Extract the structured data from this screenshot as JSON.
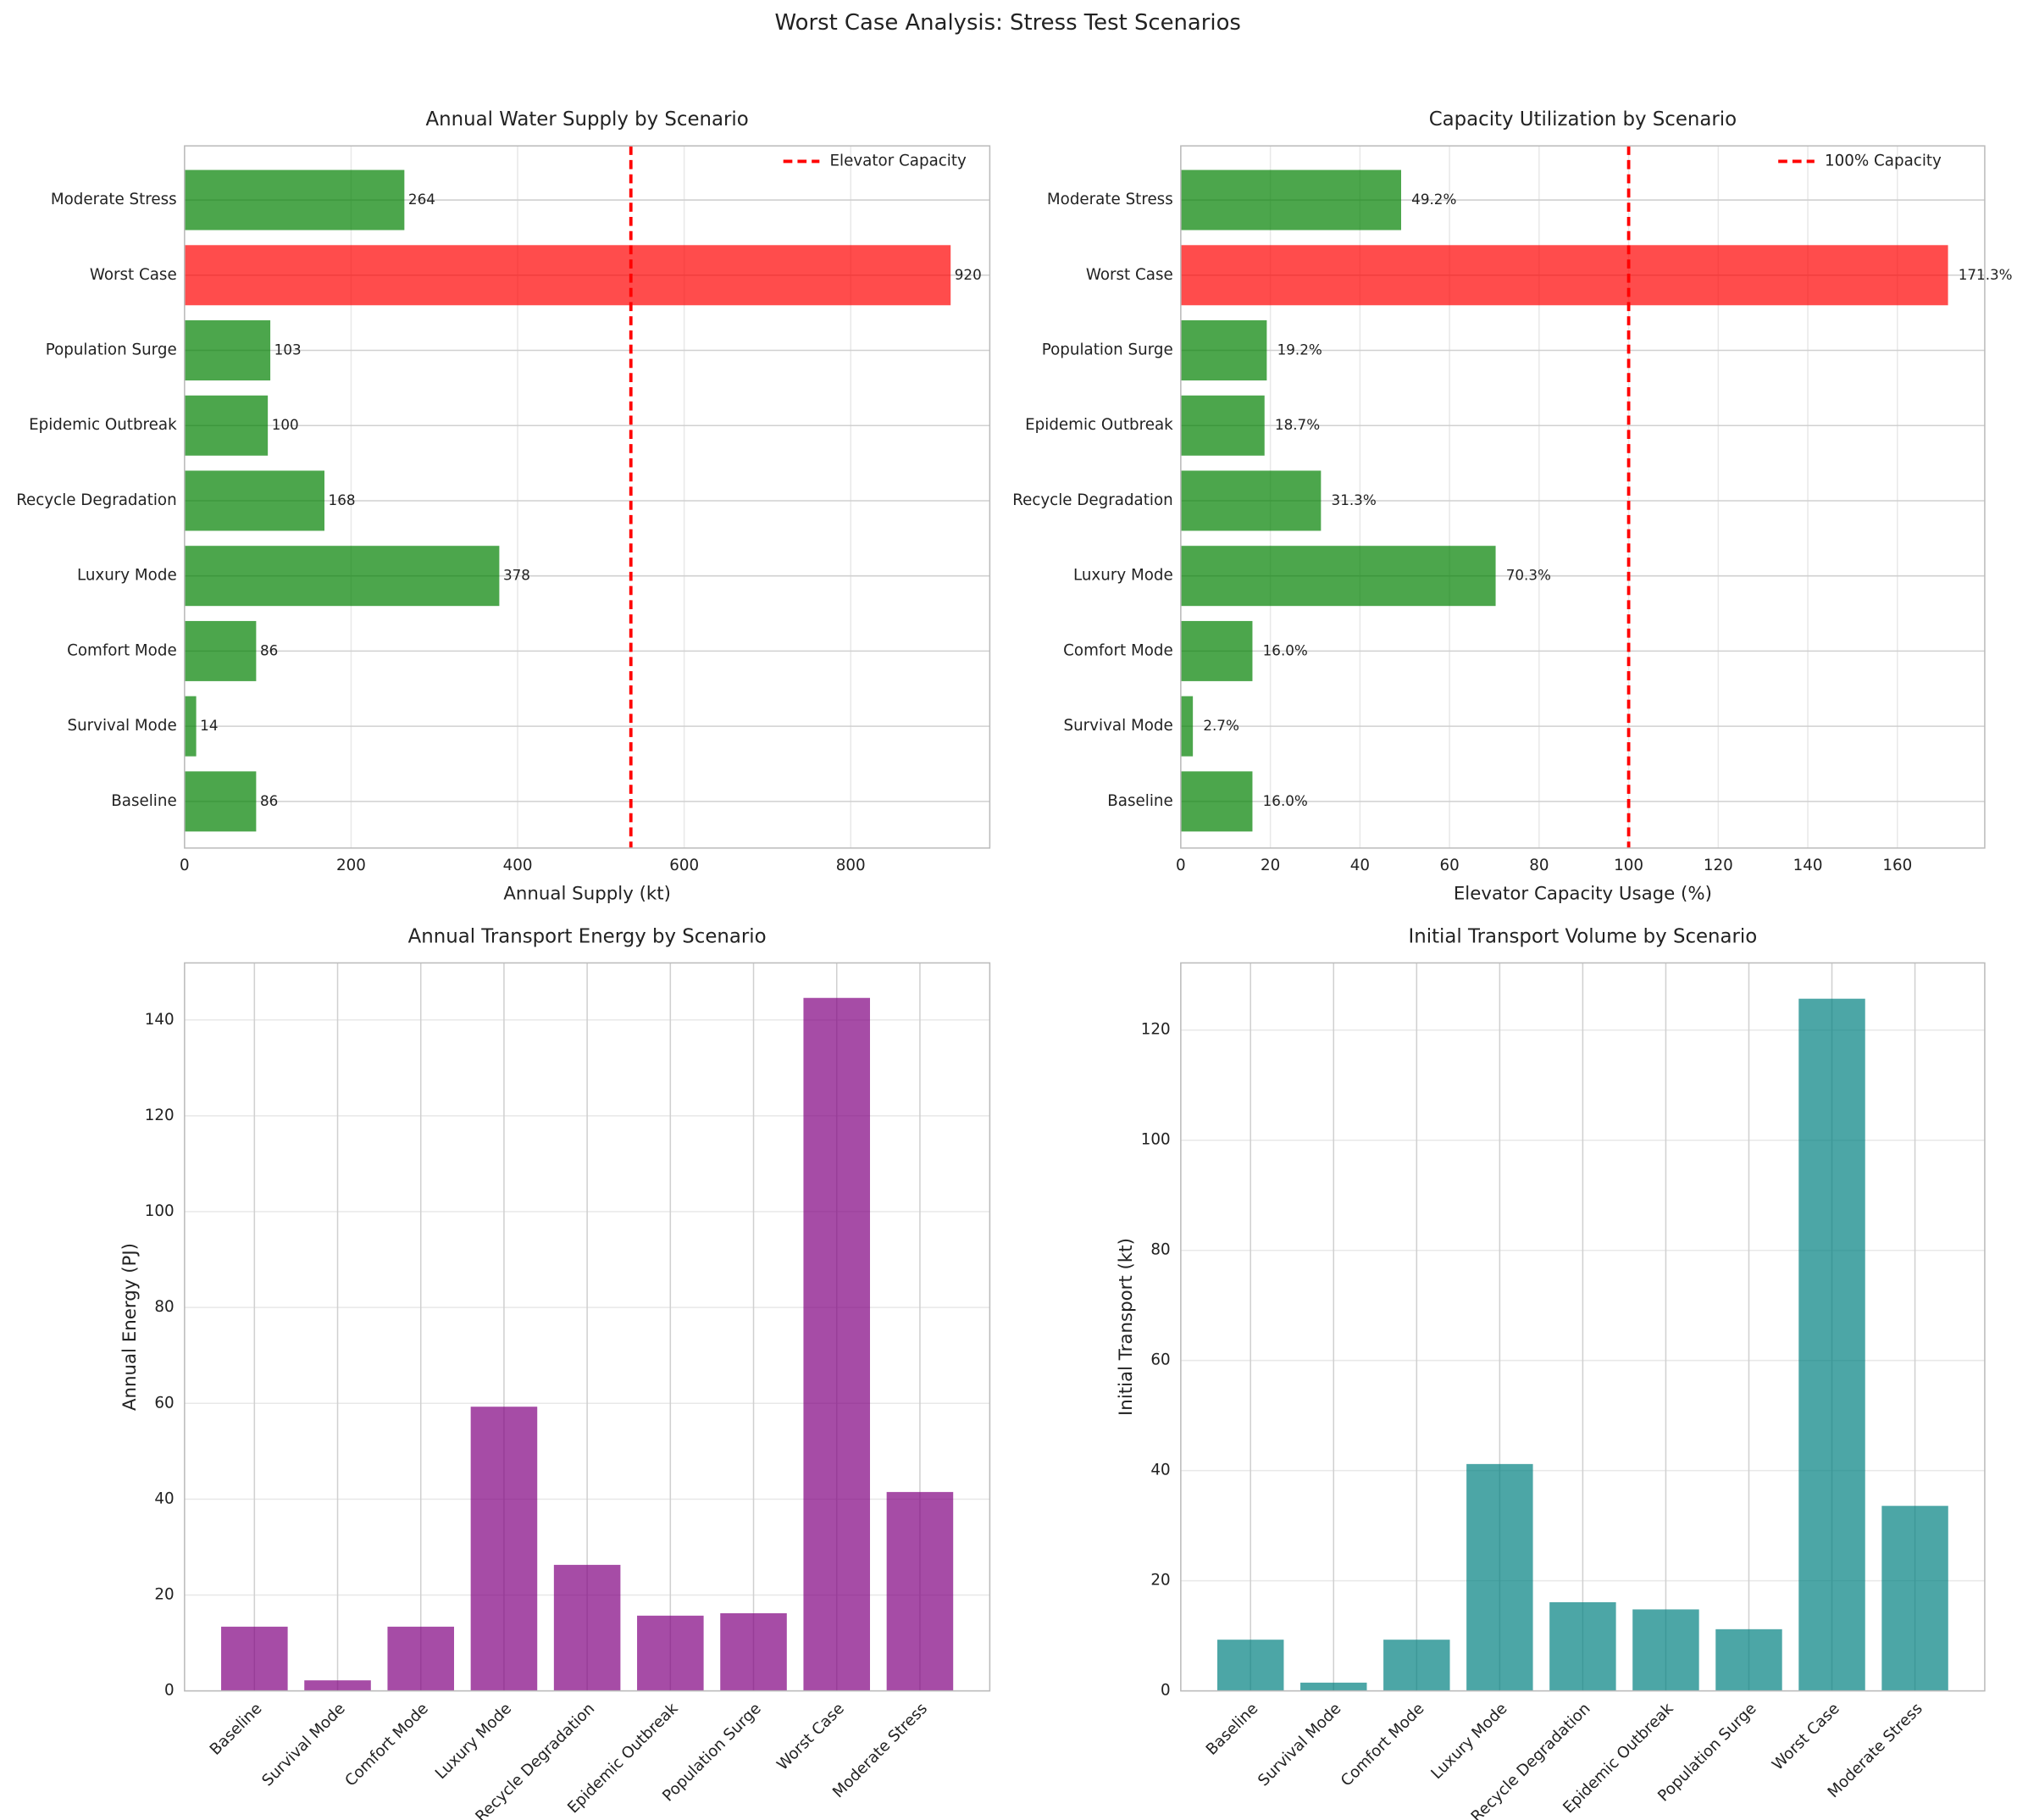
{
  "title": "Worst Case Analysis: Stress Test Scenarios",
  "chart_data": [
    {
      "type": "barh",
      "title": "Annual Water Supply by Scenario",
      "xlabel": "Annual Supply (kt)",
      "categories": [
        "Baseline",
        "Survival Mode",
        "Comfort Mode",
        "Luxury Mode",
        "Recycle Degradation",
        "Epidemic Outbreak",
        "Population Surge",
        "Worst Case",
        "Moderate Stress"
      ],
      "values": [
        86,
        14,
        86,
        378,
        168,
        100,
        103,
        920,
        264
      ],
      "colors": [
        "green",
        "green",
        "green",
        "green",
        "green",
        "green",
        "green",
        "red",
        "green"
      ],
      "xlim": [
        0,
        967
      ],
      "xticks": [
        0,
        200,
        400,
        600,
        800
      ],
      "reference_line": {
        "value": 536,
        "label": "Elevator Capacity",
        "color": "red"
      },
      "legend": "upper right",
      "grid": true
    },
    {
      "type": "barh",
      "title": "Capacity Utilization by Scenario",
      "xlabel": "Elevator Capacity Usage (%)",
      "categories": [
        "Baseline",
        "Survival Mode",
        "Comfort Mode",
        "Luxury Mode",
        "Recycle Degradation",
        "Epidemic Outbreak",
        "Population Surge",
        "Worst Case",
        "Moderate Stress"
      ],
      "values": [
        16.0,
        2.7,
        16.0,
        70.3,
        31.3,
        18.7,
        19.2,
        171.3,
        49.2
      ],
      "value_labels": [
        "16.0%",
        "2.7%",
        "16.0%",
        "70.3%",
        "31.3%",
        "18.7%",
        "19.2%",
        "171.3%",
        "49.2%"
      ],
      "colors": [
        "green",
        "green",
        "green",
        "green",
        "green",
        "green",
        "green",
        "red",
        "green"
      ],
      "xlim": [
        0,
        179.5
      ],
      "xticks": [
        0,
        20,
        40,
        60,
        80,
        100,
        120,
        140,
        160
      ],
      "reference_line": {
        "value": 100,
        "label": "100% Capacity",
        "color": "red"
      },
      "legend": "upper right",
      "grid": true
    },
    {
      "type": "bar",
      "title": "Annual Transport Energy by Scenario",
      "ylabel": "Annual Energy (PJ)",
      "categories": [
        "Baseline",
        "Survival Mode",
        "Comfort Mode",
        "Luxury Mode",
        "Recycle Degradation",
        "Epidemic Outbreak",
        "Population Surge",
        "Worst Case",
        "Moderate Stress"
      ],
      "values": [
        13.4,
        2.2,
        13.4,
        59.3,
        26.3,
        15.7,
        16.2,
        144.6,
        41.5
      ],
      "color": "purple",
      "ylim": [
        0,
        151.9
      ],
      "yticks": [
        0,
        20,
        40,
        60,
        80,
        100,
        120,
        140
      ],
      "grid": true
    },
    {
      "type": "bar",
      "title": "Initial Transport Volume by Scenario",
      "ylabel": "Initial Transport (kt)",
      "categories": [
        "Baseline",
        "Survival Mode",
        "Comfort Mode",
        "Luxury Mode",
        "Recycle Degradation",
        "Epidemic Outbreak",
        "Population Surge",
        "Worst Case",
        "Moderate Stress"
      ],
      "values": [
        9.3,
        1.5,
        9.3,
        41.2,
        16.1,
        14.8,
        11.2,
        125.7,
        33.6
      ],
      "color": "teal",
      "ylim": [
        0,
        132.2
      ],
      "yticks": [
        0,
        20,
        40,
        60,
        80,
        100,
        120
      ],
      "grid": true
    }
  ]
}
